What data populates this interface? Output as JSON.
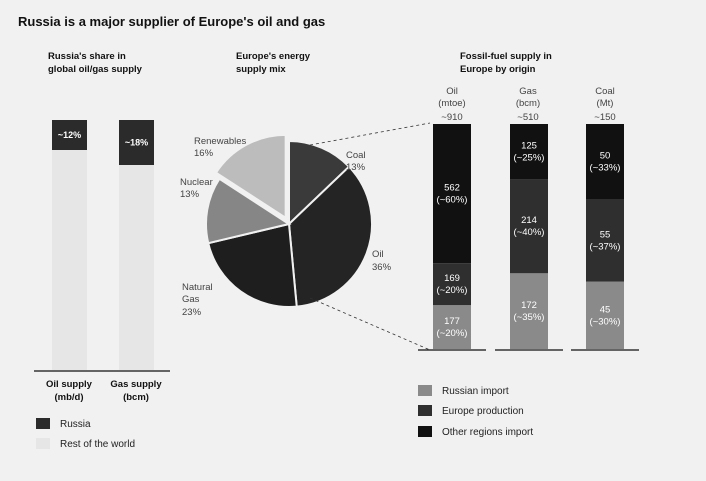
{
  "title": "Russia is a major supplier of Europe's oil and gas",
  "colors": {
    "russia": "#2b2b2b",
    "rest_of_world": "#e6e6e6",
    "russian_import": "#8a8a8a",
    "europe_production": "#2f2f2f",
    "other_regions_import": "#111111",
    "pie_coal": "#3a3a3a",
    "pie_oil": "#242424",
    "pie_gas": "#1e1e1e",
    "pie_nuclear": "#868686",
    "pie_renewables": "#bcbcbc"
  },
  "chart_data": [
    {
      "type": "bar",
      "title": "Russia's share in global oil/gas supply",
      "title_lines": [
        "Russia's share in",
        "global oil/gas supply"
      ],
      "categories": [
        "Oil supply (mb/d)",
        "Gas supply (bcm)"
      ],
      "category_lines": [
        [
          "Oil supply",
          "(mb/d)"
        ],
        [
          "Gas supply",
          "(bcm)"
        ]
      ],
      "series": [
        {
          "name": "Russia",
          "values": [
            12,
            18
          ],
          "labels": [
            "~12%",
            "~18%"
          ]
        },
        {
          "name": "Rest of the world",
          "values": [
            88,
            82
          ]
        }
      ],
      "stacked": true,
      "ylim": [
        0,
        100
      ],
      "legend": [
        "Russia",
        "Rest of the world"
      ]
    },
    {
      "type": "pie",
      "title": "Europe's energy supply mix",
      "title_lines": [
        "Europe's energy",
        "supply mix"
      ],
      "slices": [
        {
          "label": "Coal",
          "value": 13,
          "text": "13%"
        },
        {
          "label": "Oil",
          "value": 36,
          "text": "36%"
        },
        {
          "label": "Natural Gas",
          "value": 23,
          "text": "23%",
          "label_lines": [
            "Natural",
            "Gas"
          ]
        },
        {
          "label": "Nuclear",
          "value": 13,
          "text": "13%"
        },
        {
          "label": "Renewables",
          "value": 16,
          "text": "16%"
        }
      ]
    },
    {
      "type": "bar",
      "title": "Fossil-fuel supply in Europe by origin",
      "title_lines": [
        "Fossil-fuel supply in",
        "Europe by origin"
      ],
      "stacked": true,
      "categories": [
        "Oil",
        "Gas",
        "Coal"
      ],
      "units": [
        "(mtoe)",
        "(bcm)",
        "(Mt)"
      ],
      "totals": [
        "~910",
        "~510",
        "~150"
      ],
      "series": [
        {
          "name": "Russian import",
          "values": [
            177,
            172,
            45
          ],
          "labels": [
            "177\n(~20%)",
            "172\n(~35%)",
            "45\n(~30%)"
          ]
        },
        {
          "name": "Europe production",
          "values": [
            169,
            214,
            55
          ],
          "labels": [
            "169\n(~20%)",
            "214\n(~40%)",
            "55\n(~37%)"
          ]
        },
        {
          "name": "Other regions import",
          "values": [
            562,
            125,
            50
          ],
          "labels": [
            "562\n(~60%)",
            "125\n(~25%)",
            "50\n(~33%)"
          ]
        }
      ],
      "legend": [
        "Russian import",
        "Europe production",
        "Other regions import"
      ]
    }
  ]
}
